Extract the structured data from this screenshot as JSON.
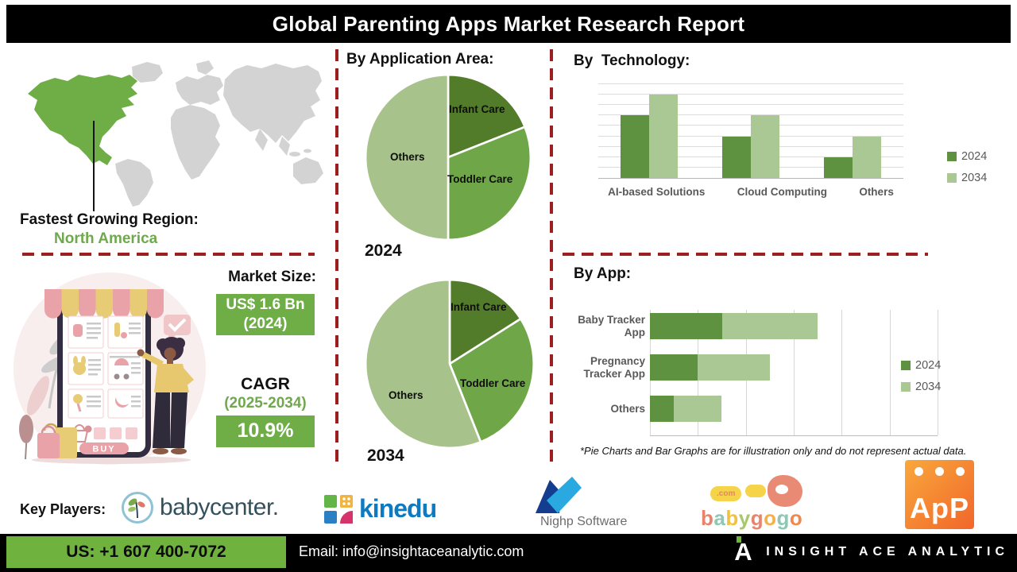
{
  "header": {
    "title": "Global Parenting Apps Market Research Report"
  },
  "map": {
    "label": "Fastest Growing Region:",
    "region": "North America",
    "highlight_color": "#6fae46",
    "land_color": "#d3d3d3"
  },
  "sections": {
    "application": "By Application Area:",
    "technology": "By  Technology:",
    "app": "By App:"
  },
  "market": {
    "size_label": "Market Size:",
    "size_value": "US$ 1.6 Bn",
    "size_year": "(2024)",
    "cagr_label": "CAGR",
    "cagr_period": "(2025-2034)",
    "cagr_value": "10.9%"
  },
  "note": "*Pie Charts and Bar Graphs are for illustration only and do not represent actual data.",
  "illustration": {
    "buy_label": "BUY"
  },
  "key_players": {
    "label": "Key Players:",
    "babycenter": "babycenter.",
    "kinedu": "kinedu",
    "nighp": "Nighp Software",
    "babygogo": {
      "com": ".com",
      "letters": [
        {
          "ch": "b",
          "color": "#e8836c"
        },
        {
          "ch": "a",
          "color": "#8fc7b4"
        },
        {
          "ch": "b",
          "color": "#f0c23f"
        },
        {
          "ch": "y",
          "color": "#a6c96a"
        },
        {
          "ch": "g",
          "color": "#e8836c"
        },
        {
          "ch": "o",
          "color": "#f5b04a"
        },
        {
          "ch": "g",
          "color": "#8fc7b4"
        },
        {
          "ch": "o",
          "color": "#f0884f"
        }
      ]
    },
    "app_logo": "ApP"
  },
  "footer": {
    "phone": "US: +1 607 400-7072",
    "email": "Email: info@insightaceanalytic.com",
    "brand": "INSIGHT ACE ANALYTIC",
    "brand_mark": "A",
    "accent": "#6fb33e"
  },
  "colors": {
    "accent_green": "#6fae46",
    "green_text": "#70a84e",
    "dash_red": "#9c1f1f",
    "axis_gray": "#595959",
    "title_bg": "#000000"
  },
  "chart_data": [
    {
      "id": "application-2024",
      "type": "pie",
      "title": "2024",
      "labels": [
        "Infant Care",
        "Toddler Care",
        "Others"
      ],
      "values": [
        19,
        31,
        50
      ],
      "colors": [
        "#527c2a",
        "#6fa648",
        "#a7c28b"
      ],
      "legend_position": "none"
    },
    {
      "id": "application-2034",
      "type": "pie",
      "title": "2034",
      "labels": [
        "Infant Care",
        "Toddler Care",
        "Others"
      ],
      "values": [
        16,
        28,
        56
      ],
      "colors": [
        "#527c2a",
        "#6fa648",
        "#a7c28b"
      ],
      "legend_position": "none"
    },
    {
      "id": "technology",
      "type": "bar",
      "title": "By Technology:",
      "categories": [
        "AI-based Solutions",
        "Cloud Computing",
        "Others"
      ],
      "series": [
        {
          "name": "2024",
          "values": [
            6,
            4,
            2
          ],
          "color": "#5e9140"
        },
        {
          "name": "2034",
          "values": [
            8,
            6,
            4
          ],
          "color": "#a9c893"
        }
      ],
      "ylim": [
        0,
        9
      ],
      "grid": true,
      "legend_position": "right"
    },
    {
      "id": "app",
      "type": "bar-horizontal-stacked",
      "title": "By App:",
      "categories": [
        "Baby Tracker App",
        "Pregnancy Tracker App",
        "Others"
      ],
      "series": [
        {
          "name": "2024",
          "values": [
            1.5,
            1,
            0.5
          ],
          "color": "#5e9140"
        },
        {
          "name": "2034",
          "values": [
            2,
            1.5,
            1
          ],
          "color": "#a9c893"
        }
      ],
      "xlim": [
        0,
        6
      ],
      "grid": true,
      "legend_position": "right"
    }
  ]
}
